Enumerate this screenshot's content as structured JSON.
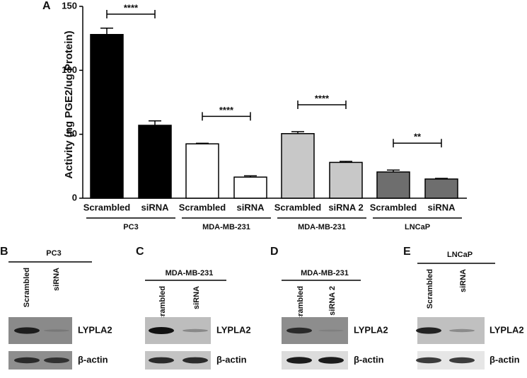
{
  "chart_data": {
    "type": "bar",
    "panel_label": "A",
    "y_label": "Activity (ng PGE2/ug Protein)",
    "categories": [
      "Scrambled",
      "siRNA",
      "Scrambled",
      "siRNA",
      "Scrambled",
      "siRNA 2",
      "Scrambled",
      "siRNA"
    ],
    "values": [
      128,
      57,
      42.5,
      16.5,
      50.5,
      28,
      20.5,
      15
    ],
    "errors": [
      5,
      3.5,
      0.5,
      1,
      1.5,
      0.8,
      1.5,
      0.5
    ],
    "colors": [
      "#000000",
      "#000000",
      "#ffffff",
      "#ffffff",
      "#c8c8c8",
      "#c8c8c8",
      "#6e6e6e",
      "#6e6e6e"
    ],
    "groups": [
      "PC3",
      "MDA-MB-231",
      "MDA-MB-231",
      "LNCaP"
    ],
    "significance": [
      "****",
      "****",
      "****",
      "**"
    ],
    "ylim": [
      0,
      150
    ],
    "yticks": [
      0,
      50,
      100,
      150
    ]
  },
  "blots": [
    {
      "panel": "B",
      "cell_line": "PC3",
      "lanes": [
        "Scrambled",
        "siRNA"
      ],
      "proteins": [
        "LYPLA2",
        "β-actin"
      ]
    },
    {
      "panel": "C",
      "cell_line": "MDA-MB-231",
      "lanes": [
        "Scrambled",
        "siRNA"
      ],
      "proteins": [
        "LYPLA2",
        "β-actin"
      ]
    },
    {
      "panel": "D",
      "cell_line": "MDA-MB-231",
      "lanes": [
        "Scrambled",
        "siRNA 2"
      ],
      "proteins": [
        "LYPLA2",
        "β-actin"
      ]
    },
    {
      "panel": "E",
      "cell_line": "LNCaP",
      "lanes": [
        "Scrambled",
        "siRNA"
      ],
      "proteins": [
        "LYPLA2",
        "β-actin"
      ]
    }
  ]
}
